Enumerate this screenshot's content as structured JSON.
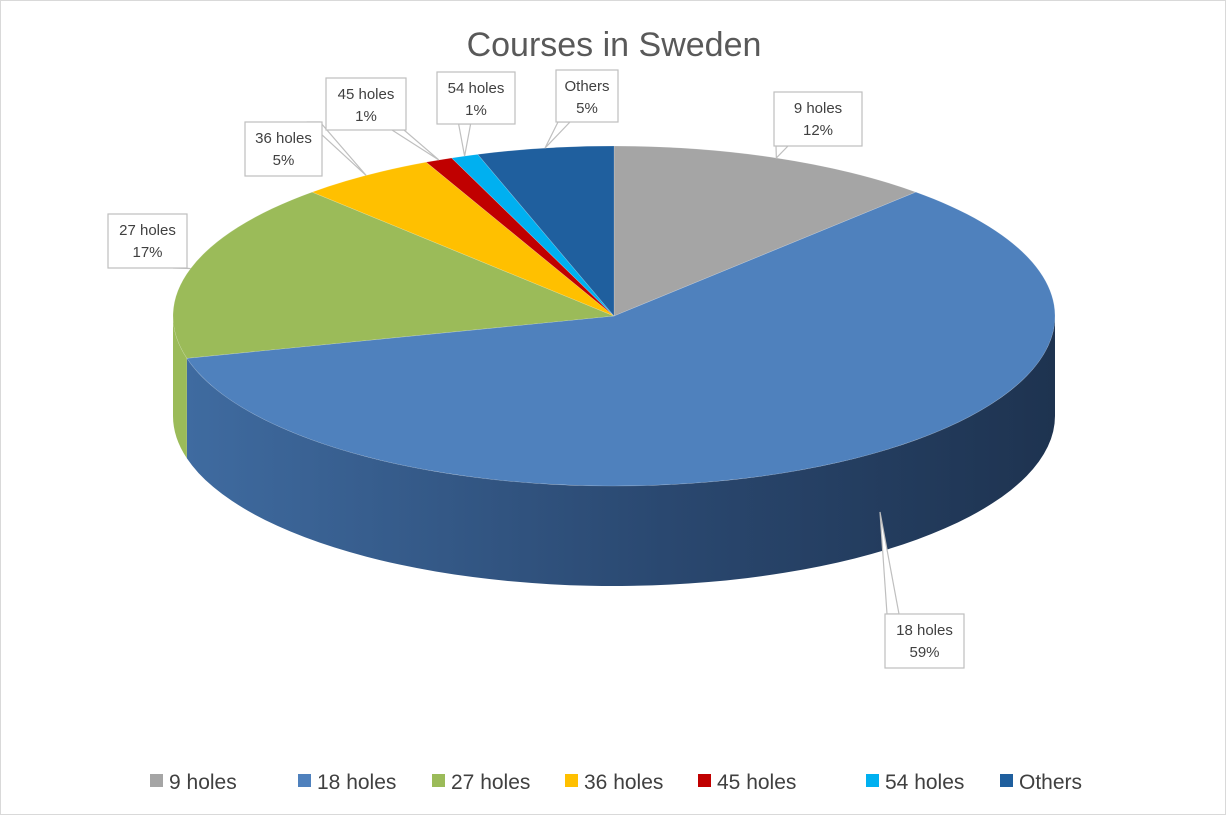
{
  "chart_data": {
    "type": "pie",
    "title": "Courses in Sweden",
    "categories": [
      "9 holes",
      "18 holes",
      "27 holes",
      "36 holes",
      "45 holes",
      "54 holes",
      "Others"
    ],
    "values": [
      12,
      59,
      17,
      5,
      1,
      1,
      5
    ],
    "data_labels": [
      "12%",
      "59%",
      "17%",
      "5%",
      "1%",
      "1%",
      "5%"
    ],
    "colors": [
      "#a5a5a5",
      "#4f81bd",
      "#9bbb59",
      "#ffc000",
      "#c00000",
      "#00b0f0",
      "#1f5f9e"
    ],
    "legend": "bottom",
    "style": "3d"
  }
}
